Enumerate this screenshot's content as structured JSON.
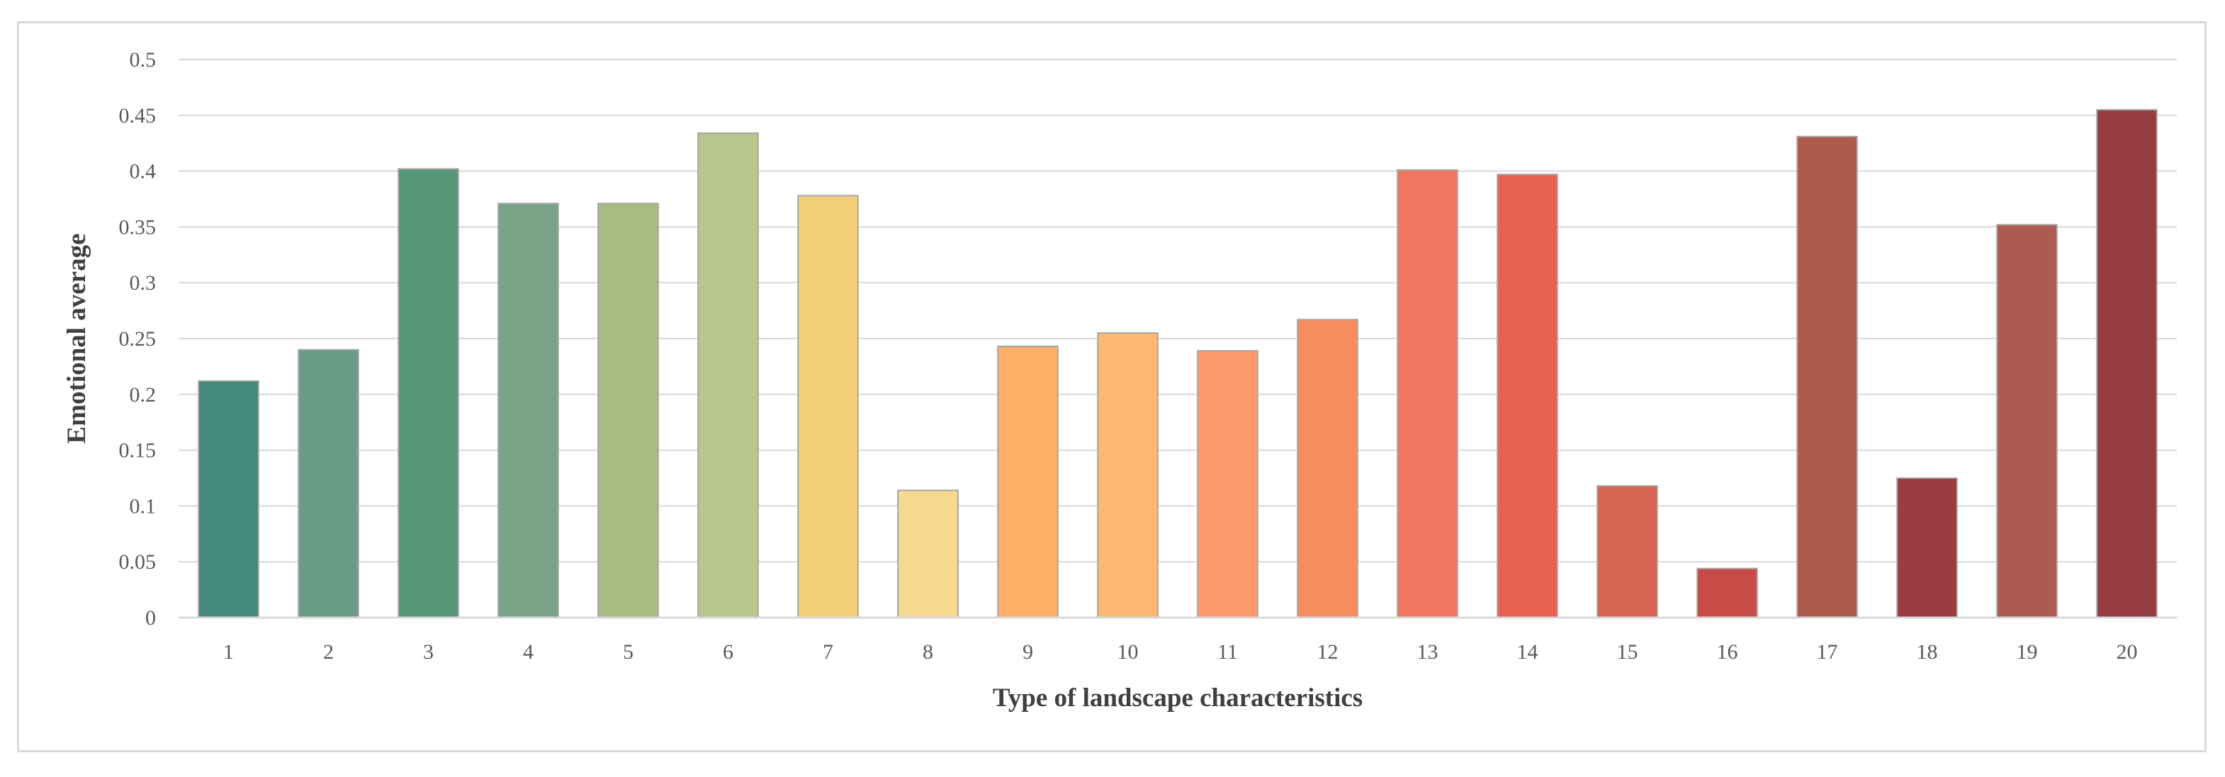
{
  "chart_data": {
    "type": "bar",
    "title": "",
    "xlabel": "Type of landscape characteristics",
    "ylabel": "Emotional average",
    "categories": [
      "1",
      "2",
      "3",
      "4",
      "5",
      "6",
      "7",
      "8",
      "9",
      "10",
      "11",
      "12",
      "13",
      "14",
      "15",
      "16",
      "17",
      "18",
      "19",
      "20"
    ],
    "values": [
      0.212,
      0.24,
      0.402,
      0.371,
      0.371,
      0.434,
      0.378,
      0.114,
      0.243,
      0.255,
      0.239,
      0.267,
      0.401,
      0.397,
      0.118,
      0.044,
      0.431,
      0.125,
      0.352,
      0.455
    ],
    "colors": [
      "#44897a",
      "#6a9b86",
      "#579579",
      "#79a487",
      "#a7bc82",
      "#b8c68f",
      "#f1cf78",
      "#f7d88f",
      "#fdaf67",
      "#ffb874",
      "#fc9c6c",
      "#f68d5e",
      "#f1765f",
      "#e86151",
      "#d76452",
      "#c94b48",
      "#ad5a4d",
      "#9c3b40",
      "#ad5b52",
      "#953c41"
    ],
    "bar_stroke": "#a6a6a6",
    "ylim": [
      0,
      0.5
    ],
    "yticks": [
      0,
      0.05,
      0.1,
      0.15,
      0.2,
      0.25,
      0.3,
      0.35,
      0.4,
      0.45,
      0.5
    ],
    "ytick_labels": [
      "0",
      "0.05",
      "0.1",
      "0.15",
      "0.2",
      "0.25",
      "0.3",
      "0.35",
      "0.4",
      "0.45",
      "0.5"
    ],
    "grid": true,
    "legend": "none"
  }
}
